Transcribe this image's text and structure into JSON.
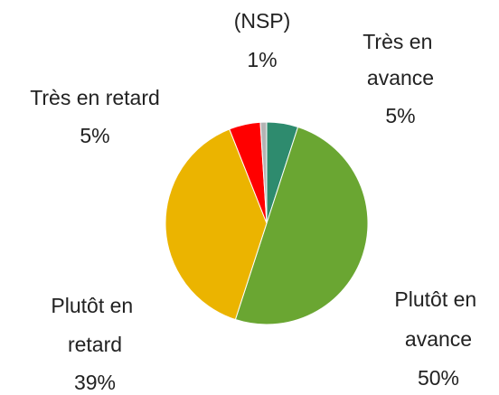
{
  "chart_data": {
    "type": "pie",
    "categories": [
      "Très en avance",
      "Plutôt en avance",
      "Plutôt en retard",
      "Très en retard",
      "(NSP)"
    ],
    "values": [
      5,
      50,
      39,
      5,
      1
    ],
    "value_labels": [
      "5%",
      "50%",
      "39%",
      "5%",
      "1%"
    ],
    "colors": [
      "#2e8b6e",
      "#6aa632",
      "#ebb400",
      "#ff0000",
      "#b4b4b4"
    ]
  }
}
